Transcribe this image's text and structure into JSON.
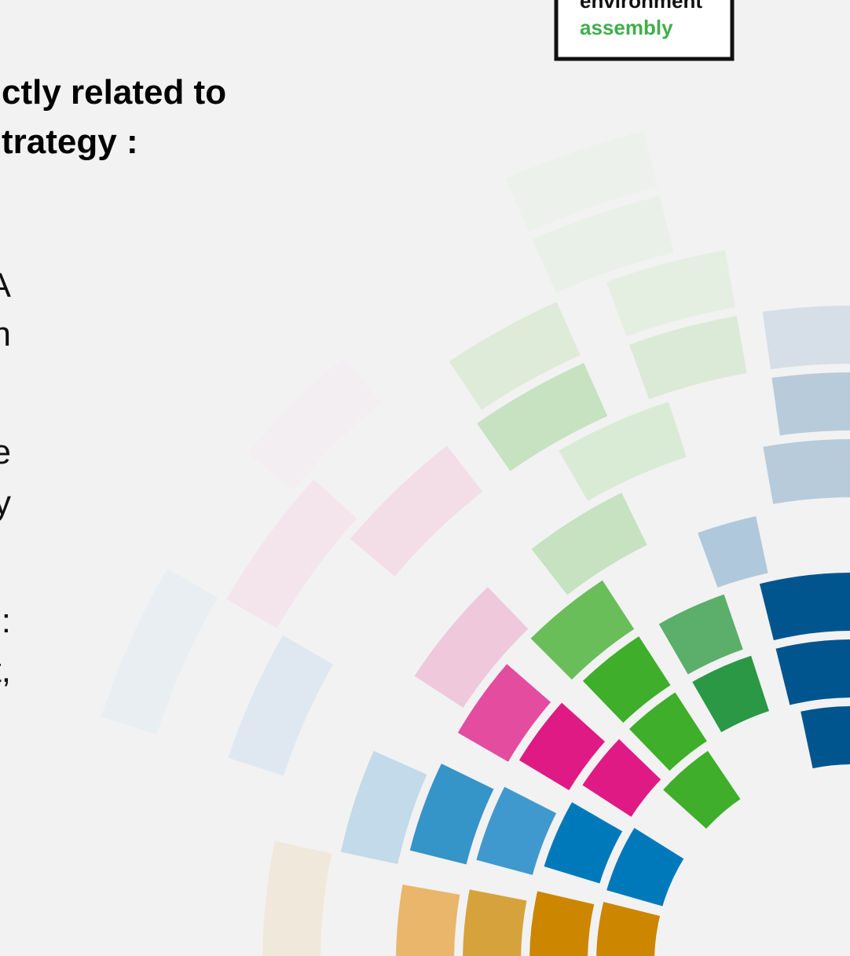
{
  "logo": {
    "line1": "environment",
    "line2": "assembly"
  },
  "heading": {
    "line1": "ctly related to",
    "line2": "trategy :"
  },
  "body_fragments": [
    "A",
    "n",
    "e",
    "y",
    ":",
    "t,"
  ]
}
